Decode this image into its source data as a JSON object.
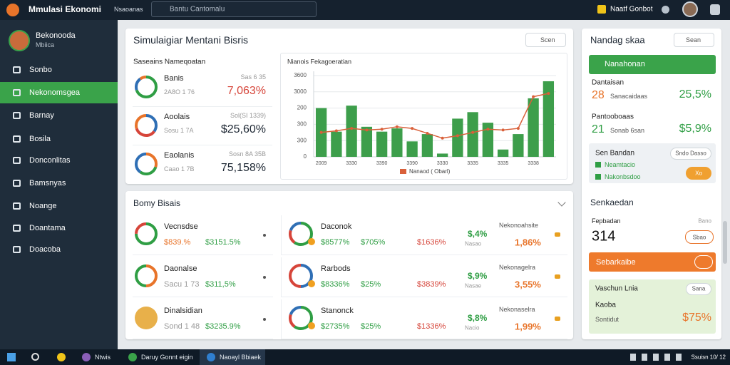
{
  "topbar": {
    "app_title": "Mmulasi Ekonomi",
    "nav": "Nsaoanas",
    "search": "Bantu Cantomalu",
    "user": "Naatf Gonbot"
  },
  "sidebar": {
    "user_name": "Bekonooda",
    "user_role": "Mbiica",
    "menu": [
      "Sonbo",
      "Nekonomsgea",
      "Barnay",
      "Bosila",
      "Donconlitas",
      "Bamsnyas",
      "Noange",
      "Doantama",
      "Doacoba"
    ]
  },
  "simulation": {
    "title": "Simulaigiar Mentani Bisris",
    "button": "Scen",
    "summary": {
      "title": "Saseains Nameqoatan",
      "rows": [
        {
          "label": "Banis",
          "sub": "2A8O 1 76",
          "note": "Sas 6 35",
          "value": "7,063%"
        },
        {
          "label": "Aoolais",
          "sub": "Sosu 1 7A",
          "note": "Sol(SI 1339)",
          "value": "$25,60%"
        },
        {
          "label": "Eaolanis",
          "sub": "Caao 1 7B",
          "note": "Sosn 8A 35B",
          "value": "75,158%"
        }
      ]
    }
  },
  "chart_data": {
    "type": "bar",
    "title": "Nianois Fekagoeratian",
    "categories": [
      "2009",
      null,
      "3330",
      null,
      "3390",
      null,
      "3390",
      null,
      "3330",
      null,
      "3335",
      null,
      "3335",
      null,
      "3338",
      null
    ],
    "series": [
      {
        "color": "#3d9e4b",
        "values": [
          300,
          155,
          315,
          185,
          155,
          175,
          95,
          140,
          20,
          235,
          275,
          210,
          45,
          140,
          360,
          465
        ]
      },
      {
        "name": "Nanaod ( Obarl)",
        "type": "line",
        "color": "#d9603a",
        "values": [
          150,
          160,
          175,
          165,
          170,
          185,
          175,
          145,
          115,
          130,
          150,
          170,
          165,
          175,
          370,
          390
        ]
      }
    ],
    "ylim": [
      0,
      500
    ],
    "yticks": [
      0,
      {
        "value": 100,
        "label": "300"
      },
      {
        "value": 200,
        "label": "300"
      },
      {
        "value": 300,
        "label": "200"
      },
      {
        "value": 400,
        "label": "3000"
      },
      {
        "value": 500,
        "label": "3600"
      }
    ],
    "grid": true,
    "legend": "bottom"
  },
  "business": {
    "title": "Bomy Bisais",
    "left": [
      {
        "label": "Vecnsdse",
        "orange": "$839.%",
        "green": "$3151.5%"
      },
      {
        "label": "Daonalse",
        "orange": "Sacu 1 73",
        "green": "$311,5%"
      },
      {
        "label": "Dinalsidian",
        "orange": "Sond 1 48",
        "green": "$3235.9%"
      }
    ],
    "right": [
      {
        "label": "Daconok",
        "pct1": "$8577%",
        "pct2": "$705%",
        "pct3": "$1636%",
        "head": "Nekonoahsite",
        "green": "$,4%",
        "sub": "Nasao",
        "orange": "1,86%"
      },
      {
        "label": "Rarbods",
        "pct1": "$8336%",
        "pct2": "$25%",
        "pct3": "$3839%",
        "head": "Nekonagelra",
        "green": "$,9%",
        "sub": "Nasae",
        "orange": "3,55%"
      },
      {
        "label": "Stanonck",
        "pct1": "$2735%",
        "pct2": "$25%",
        "pct3": "$1336%",
        "head": "Nekonaselra",
        "green": "$,8%",
        "sub": "Nacio",
        "orange": "1,99%"
      }
    ]
  },
  "side_panel": {
    "title": "Nandag skaa",
    "button": "Sean",
    "primary_button": "Nanahonan",
    "stats": [
      {
        "label": "Dantaisan",
        "number": "28",
        "sub": "Sanacaidaas",
        "value": "25,5%"
      },
      {
        "label": "Pantooboaas",
        "number": "21",
        "sub": "Sonab 6san",
        "value": "$5,9%"
      }
    ],
    "box": {
      "title": "Sen Bandan",
      "pill": "Sndo Dasso",
      "item1": "Neamtacio",
      "item2": "Nakonbsdoo",
      "badge": "Xo"
    },
    "section": {
      "title": "Senkaedan",
      "label": "Fepbadan",
      "note": "Bano",
      "number": "314",
      "button": "Sbao"
    },
    "orange_button": "Sebarkaibe",
    "green_box": {
      "title": "Vaschun Lnia",
      "pill": "Sana",
      "label": "Kaoba",
      "sub": "Sontidut",
      "value": "$75%"
    }
  },
  "taskbar": {
    "items": [
      "Ntwis",
      "Daruy Gonnt eigin",
      "Naoayl Bbiaek"
    ],
    "clock": "Ssuisn 10/ 12"
  }
}
